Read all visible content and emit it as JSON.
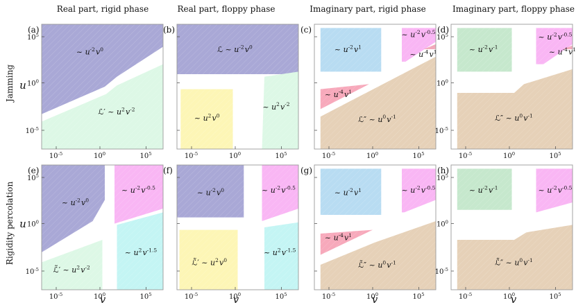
{
  "figure": {
    "column_titles": [
      "Real part, rigid phase",
      "Real part, floppy phase",
      "Imaginary part, rigid phase",
      "Imaginary part, floppy phase"
    ],
    "row_labels": [
      "Jamming",
      "Rigidity percolation"
    ],
    "axis": {
      "xlabel": "v",
      "ylabel": "u",
      "xticks": [
        "10^{-5}",
        "10^{0}",
        "10^{5}"
      ],
      "yticks": [
        "10^{5}",
        "10^{0}",
        "10^{-5}"
      ]
    },
    "panels": [
      {
        "letter": "(a)",
        "regions": [
          {
            "color": "#a9a8d6",
            "text": "~ u^{-2}v^{0}"
          },
          {
            "color": "#ddf8e6",
            "text": "ℒ′ ~ u^{2}v^{-2}"
          }
        ]
      },
      {
        "letter": "(b)",
        "regions": [
          {
            "color": "#a9a8d6",
            "text": "ℒ ~ u^{-2}v^{0}"
          },
          {
            "color": "#fdf6b6",
            "text": "~ u^{2}v^{0}"
          },
          {
            "color": "#ddf8e6",
            "text": "~ u^{2}v^{-2}"
          }
        ]
      },
      {
        "letter": "(c)",
        "regions": [
          {
            "color": "#b8dcf2",
            "text": "~ u^{-2}v^{1}"
          },
          {
            "color": "#f9b6f4",
            "text": "~ u^{-2}v^{-0.5}"
          },
          {
            "color": "#f7a9bb",
            "text": "~ u^{-4}v^{1}"
          },
          {
            "color": "#f2a9bb",
            "text": "~ u^{-4}v^{1}"
          },
          {
            "color": "#e6d1b8",
            "text": "ℒ″ ~ u^{0}v^{-1}"
          }
        ]
      },
      {
        "letter": "(d)",
        "regions": [
          {
            "color": "#c6e8cd",
            "text": "~ u^{-2}v^{-1}"
          },
          {
            "color": "#f9b6f4",
            "text": "~ u^{-2}v^{-0.5}"
          },
          {
            "color": "#f2a9bb",
            "text": "~ u^{-4}v^{1}"
          },
          {
            "color": "#e6d1b8",
            "text": "ℒ″ ~ u^{0}v^{-1}"
          }
        ]
      },
      {
        "letter": "(e)",
        "regions": [
          {
            "color": "#a9a8d6",
            "text": "~ u^{-2}v^{0}"
          },
          {
            "color": "#f9b6f4",
            "text": "~ u^{-2}v^{-0.5}"
          },
          {
            "color": "#ddf8e6",
            "text": "ℒ̃′ ~ u^{2}v^{-2}"
          },
          {
            "color": "#c4f5f4",
            "text": "~ u^{2}v^{-1.5}"
          }
        ]
      },
      {
        "letter": "(f)",
        "regions": [
          {
            "color": "#a9a8d6",
            "text": "~ u^{-2}v^{0}"
          },
          {
            "color": "#f9b6f4",
            "text": "~ u^{-2}v^{-0.5}"
          },
          {
            "color": "#fdf6b6",
            "text": "ℒ̃′ ~ u^{2}v^{0}"
          },
          {
            "color": "#c4f5f4",
            "text": "~ u^{2}v^{-1.5}"
          }
        ]
      },
      {
        "letter": "(g)",
        "regions": [
          {
            "color": "#b8dcf2",
            "text": "~ u^{-2}v^{1}"
          },
          {
            "color": "#f9b6f4",
            "text": "~ u^{-2}v^{-0.5}"
          },
          {
            "color": "#f7a9bb",
            "text": "~ u^{-4}v^{1}"
          },
          {
            "color": "#e6d1b8",
            "text": "ℒ̃″ ~ u^{0}v^{-1}"
          }
        ]
      },
      {
        "letter": "(h)",
        "regions": [
          {
            "color": "#c6e8cd",
            "text": "~ u^{-2}v^{-1}"
          },
          {
            "color": "#f9b6f4",
            "text": "~ u^{-2}v^{-0.5}"
          },
          {
            "color": "#e6d1b8",
            "text": "ℒ̃″ ~ u^{0}v^{-1}"
          }
        ]
      }
    ]
  }
}
